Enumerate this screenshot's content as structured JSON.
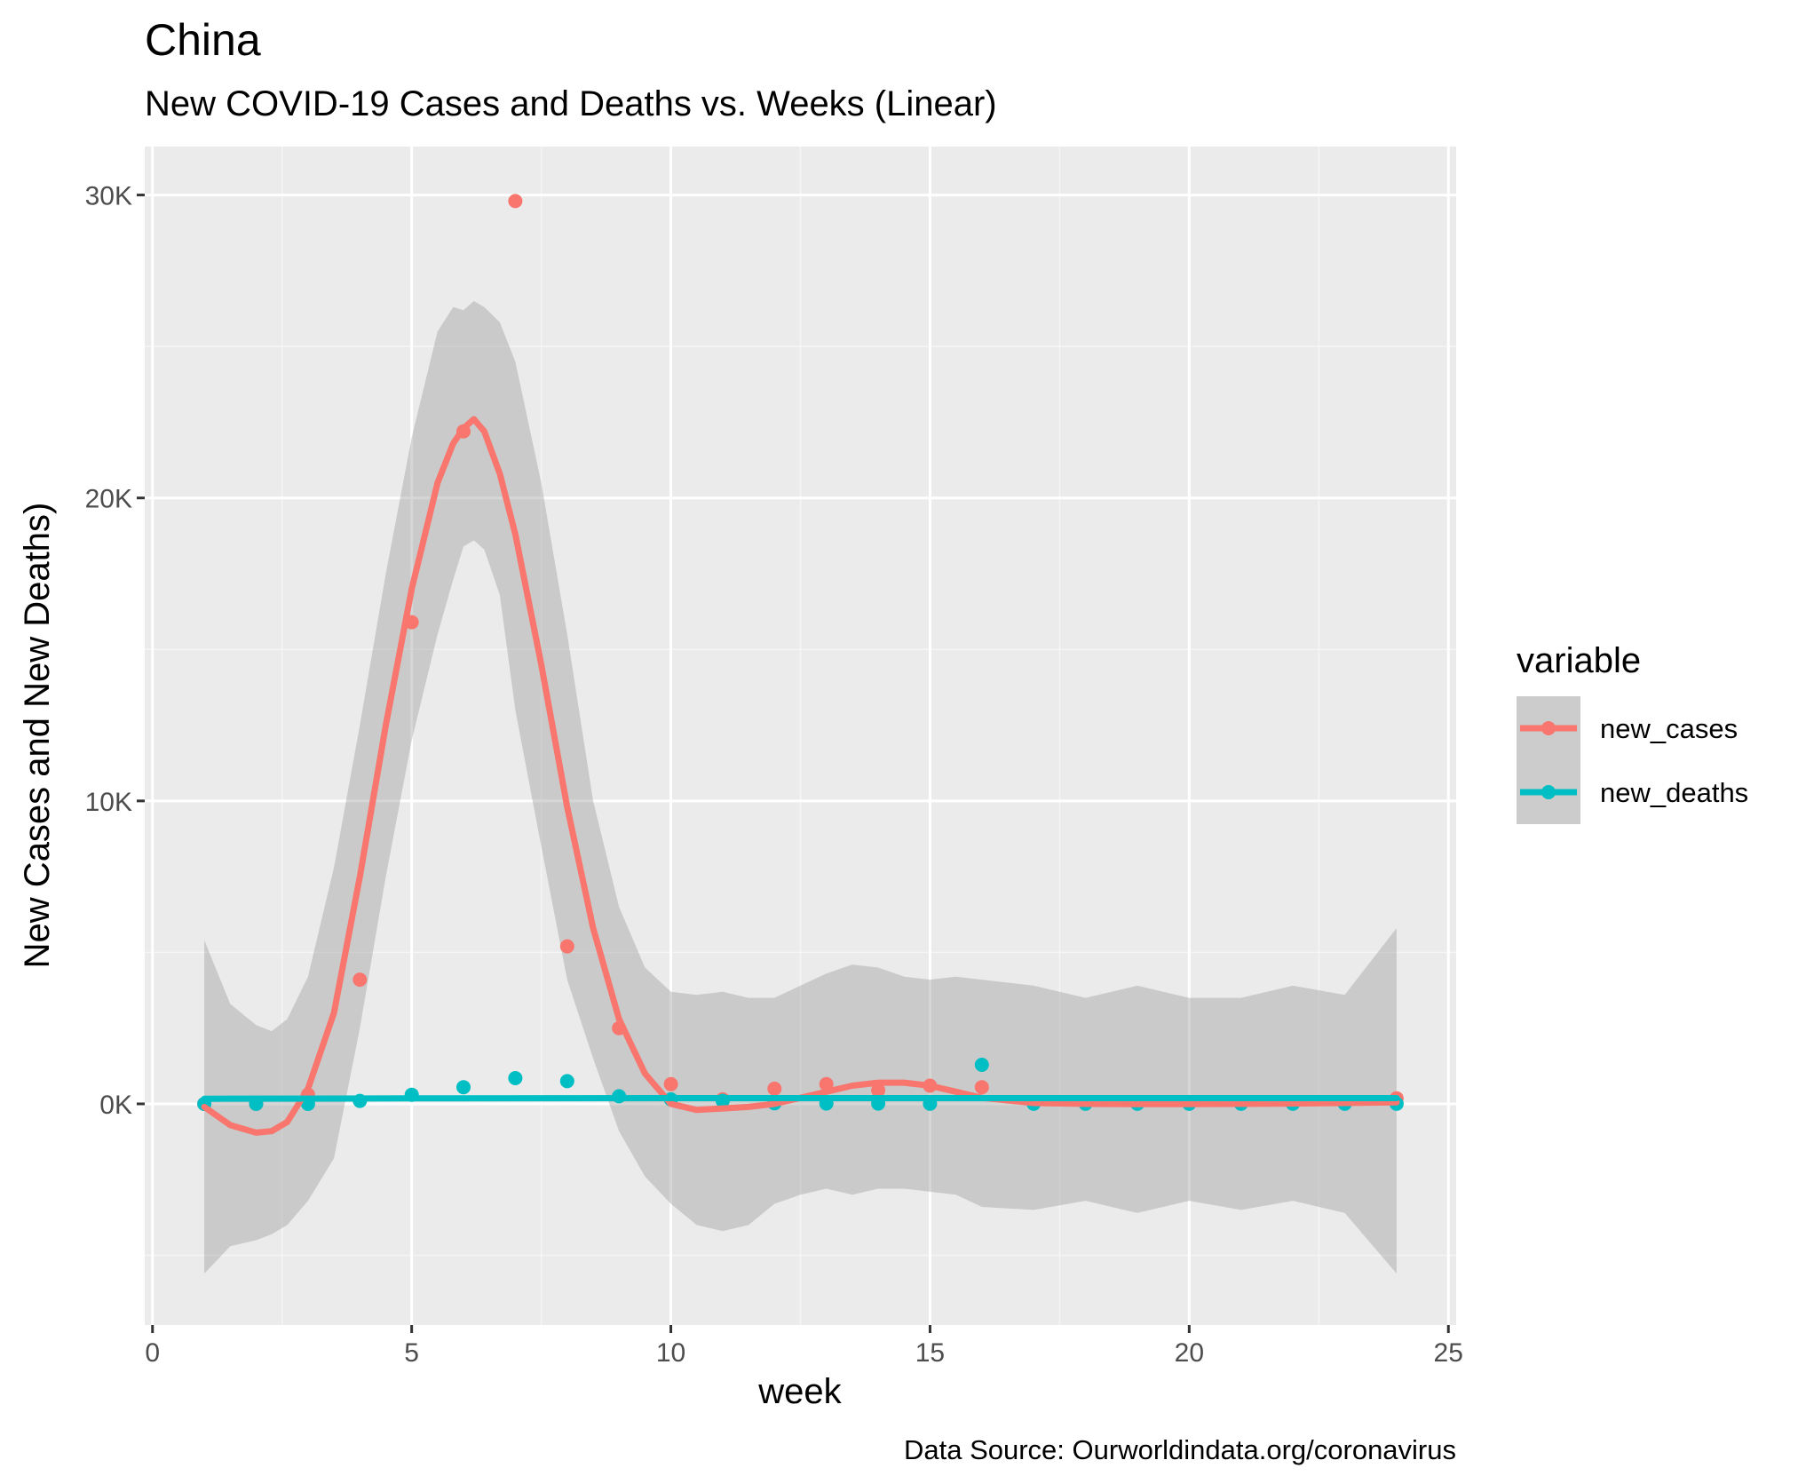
{
  "chart_data": {
    "type": "scatter",
    "title": "China",
    "subtitle": "New COVID-19 Cases and Deaths vs. Weeks (Linear)",
    "xlabel": "week",
    "ylabel": "New Cases and New Deaths)",
    "caption": "Data Source: Ourworldindata.org/coronavirus",
    "xlim": [
      -0.15,
      25.15
    ],
    "ylim": [
      -7300,
      31600
    ],
    "x_ticks": [
      0,
      5,
      10,
      15,
      20,
      25
    ],
    "x_tick_labels": [
      "0",
      "5",
      "10",
      "15",
      "20",
      "25"
    ],
    "y_ticks": [
      0,
      10000,
      20000,
      30000
    ],
    "y_tick_labels": [
      "0K",
      "10K",
      "20K",
      "30K"
    ],
    "grid": true,
    "legend": {
      "title": "variable",
      "position": "right"
    },
    "series": [
      {
        "name": "new_cases",
        "color": "#F8766D",
        "points": [
          [
            1,
            0
          ],
          [
            2,
            0
          ],
          [
            3,
            300
          ],
          [
            4,
            4100
          ],
          [
            5,
            15900
          ],
          [
            6,
            22200
          ],
          [
            7,
            29800
          ],
          [
            8,
            5200
          ],
          [
            9,
            2500
          ],
          [
            10,
            650
          ],
          [
            11,
            150
          ],
          [
            12,
            500
          ],
          [
            13,
            650
          ],
          [
            14,
            450
          ],
          [
            15,
            600
          ],
          [
            16,
            550
          ],
          [
            17,
            50
          ],
          [
            18,
            30
          ],
          [
            19,
            20
          ],
          [
            20,
            10
          ],
          [
            21,
            20
          ],
          [
            22,
            20
          ],
          [
            23,
            40
          ],
          [
            24,
            180
          ]
        ],
        "smooth": {
          "x": [
            1,
            1.5,
            2,
            2.3,
            2.6,
            3,
            3.5,
            4,
            4.5,
            5,
            5.5,
            5.8,
            6,
            6.2,
            6.4,
            6.7,
            7,
            7.5,
            8,
            8.5,
            9,
            9.5,
            10,
            10.5,
            11,
            11.5,
            12,
            12.5,
            13,
            13.5,
            14,
            14.5,
            15,
            15.5,
            16,
            17,
            18,
            19,
            20,
            21,
            22,
            23,
            24
          ],
          "y": [
            -100,
            -700,
            -950,
            -900,
            -600,
            500,
            3000,
            7500,
            12500,
            17000,
            20500,
            21800,
            22300,
            22600,
            22200,
            20800,
            18800,
            14500,
            9800,
            5800,
            2800,
            1000,
            0,
            -200,
            -150,
            -100,
            0,
            200,
            400,
            600,
            700,
            700,
            600,
            400,
            200,
            30,
            0,
            -10,
            -10,
            0,
            10,
            30,
            50
          ],
          "ci_upper": [
            5400,
            3300,
            2600,
            2400,
            2800,
            4200,
            7800,
            12500,
            17500,
            22000,
            25500,
            26300,
            26200,
            26500,
            26300,
            25800,
            24500,
            20500,
            15500,
            10000,
            6500,
            4500,
            3700,
            3600,
            3700,
            3500,
            3500,
            3900,
            4300,
            4600,
            4500,
            4200,
            4100,
            4200,
            4100,
            3900,
            3500,
            3900,
            3500,
            3500,
            3900,
            3600,
            5800
          ],
          "ci_lower": [
            -5600,
            -4700,
            -4500,
            -4300,
            -4000,
            -3200,
            -1800,
            2500,
            7500,
            12000,
            15500,
            17300,
            18400,
            18600,
            18300,
            16800,
            13000,
            8500,
            4100,
            1500,
            -900,
            -2400,
            -3300,
            -4000,
            -4200,
            -4000,
            -3300,
            -3000,
            -2800,
            -3000,
            -2800,
            -2800,
            -2900,
            -3000,
            -3400,
            -3500,
            -3200,
            -3600,
            -3200,
            -3500,
            -3200,
            -3600,
            -5600
          ]
        }
      },
      {
        "name": "new_deaths",
        "color": "#00BFC4",
        "points": [
          [
            1,
            0
          ],
          [
            2,
            0
          ],
          [
            3,
            0
          ],
          [
            4,
            100
          ],
          [
            5,
            300
          ],
          [
            6,
            550
          ],
          [
            7,
            850
          ],
          [
            8,
            750
          ],
          [
            9,
            250
          ],
          [
            10,
            150
          ],
          [
            11,
            100
          ],
          [
            12,
            20
          ],
          [
            13,
            10
          ],
          [
            14,
            10
          ],
          [
            15,
            5
          ],
          [
            16,
            1290
          ],
          [
            17,
            5
          ],
          [
            18,
            5
          ],
          [
            19,
            2
          ],
          [
            20,
            2
          ],
          [
            21,
            2
          ],
          [
            22,
            2
          ],
          [
            23,
            2
          ],
          [
            24,
            2
          ]
        ],
        "smooth": {
          "x": [
            1,
            5,
            10,
            15,
            20,
            24
          ],
          "y": [
            170,
            180,
            190,
            190,
            190,
            190
          ]
        }
      }
    ]
  }
}
